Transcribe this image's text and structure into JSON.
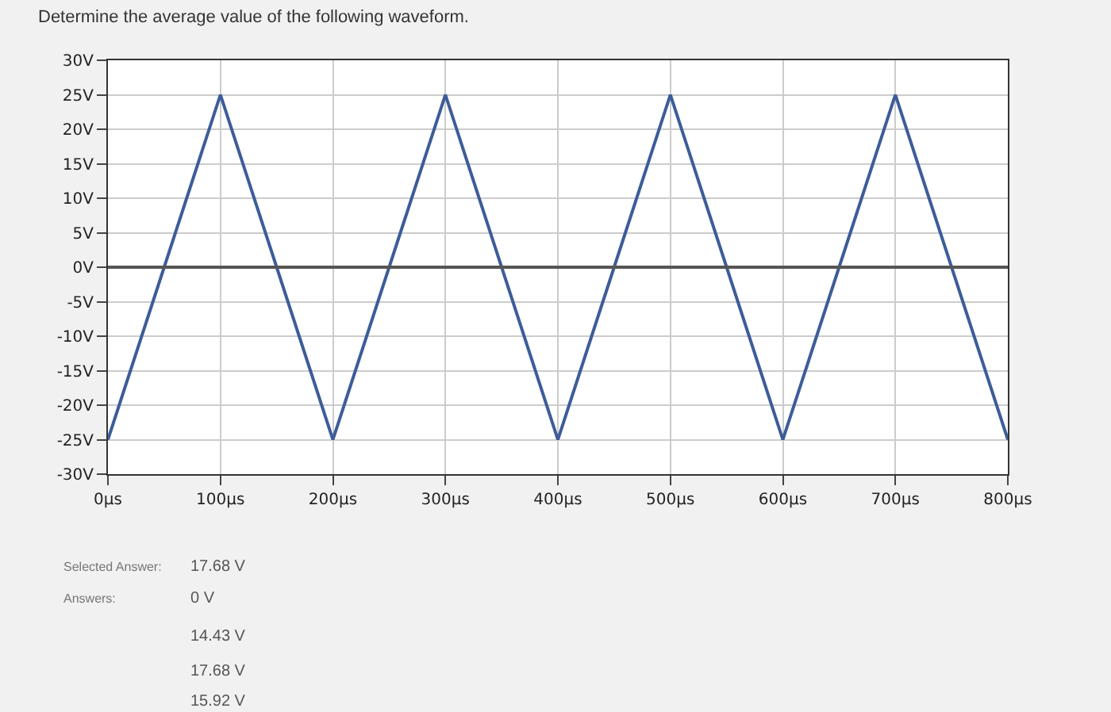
{
  "chart_data": {
    "type": "line",
    "title": "Determine the average value of the following waveform.",
    "x": [
      0,
      100,
      200,
      300,
      400,
      500,
      600,
      700,
      800
    ],
    "series": [
      {
        "color": "#3d5c99",
        "values": [
          -25,
          25,
          -25,
          25,
          -25,
          25,
          -25,
          25,
          -25
        ]
      }
    ],
    "xlim": [
      0,
      800
    ],
    "xticks": [
      {
        "value": 0,
        "label": "0μs"
      },
      {
        "value": 100,
        "label": "100μs"
      },
      {
        "value": 200,
        "label": "200μs"
      },
      {
        "value": 300,
        "label": "300μs"
      },
      {
        "value": 400,
        "label": "400μs"
      },
      {
        "value": 500,
        "label": "500μs"
      },
      {
        "value": 600,
        "label": "600μs"
      },
      {
        "value": 700,
        "label": "700μs"
      },
      {
        "value": 800,
        "label": "800μs"
      }
    ],
    "ylim": [
      -30,
      30
    ],
    "yticks": [
      {
        "value": 30,
        "label": "30V"
      },
      {
        "value": 25,
        "label": "25V"
      },
      {
        "value": 20,
        "label": "20V"
      },
      {
        "value": 15,
        "label": "15V"
      },
      {
        "value": 10,
        "label": "10V"
      },
      {
        "value": 5,
        "label": "5V"
      },
      {
        "value": 0,
        "label": "0V"
      },
      {
        "value": -5,
        "label": "-5V"
      },
      {
        "value": -10,
        "label": "-10V"
      },
      {
        "value": -15,
        "label": "-15V"
      },
      {
        "value": -20,
        "label": "-20V"
      },
      {
        "value": -25,
        "label": "-25V"
      },
      {
        "value": -30,
        "label": "-30V"
      }
    ],
    "ref_lines": [
      {
        "axis": "y",
        "value": 0,
        "color": "#555555"
      }
    ],
    "grid": true,
    "marker": "none",
    "line_style": "solid",
    "annotations": [
      "Selected Answer:",
      "17.68 V",
      "Answers:",
      "0 V",
      "14.43 V",
      "17.68 V",
      "15.92 V"
    ]
  }
}
